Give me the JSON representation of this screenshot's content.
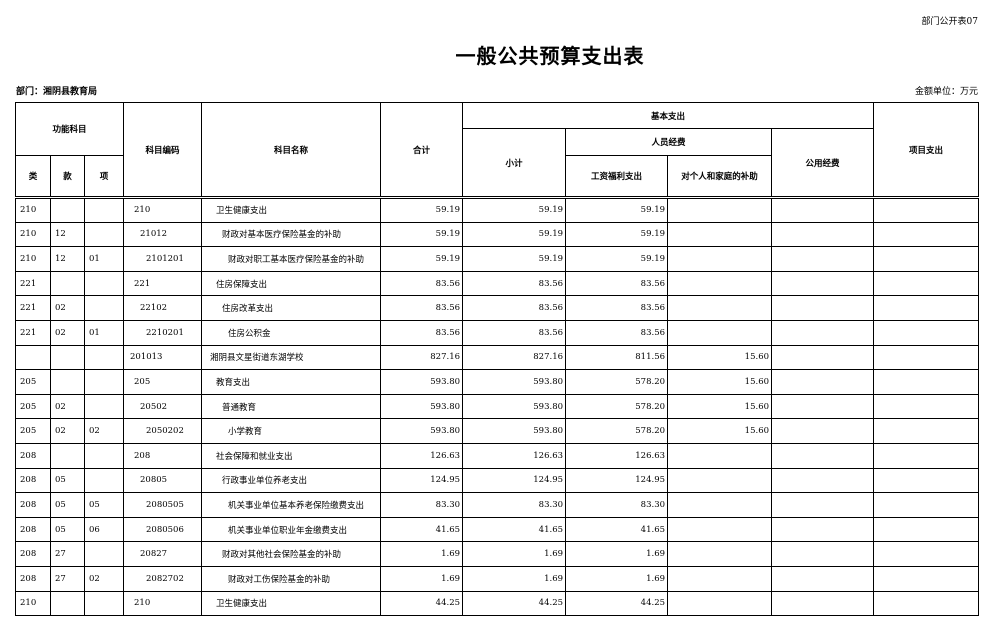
{
  "header": {
    "note": "部门公开表07",
    "title": "一般公共预算支出表",
    "department": "部门：湘阴县教育局",
    "unit": "金额单位：万元"
  },
  "table": {
    "columns": {
      "function": "功能科目",
      "lei": "类",
      "kuan": "款",
      "xiang": "项",
      "code": "科目编码",
      "name": "科目名称",
      "total": "合计",
      "basic": "基本支出",
      "subtotal": "小计",
      "personnel": "人员经费",
      "wages": "工资福利支出",
      "subsidies": "对个人和家庭的补助",
      "public": "公用经费",
      "project": "项目支出"
    },
    "rows": [
      [
        "210",
        null,
        null,
        "210",
        "卫生健康支出",
        "59.19",
        "59.19",
        "59.19",
        null,
        null,
        null
      ],
      [
        "210",
        "12",
        null,
        "21012",
        "财政对基本医疗保险基金的补助",
        "59.19",
        "59.19",
        "59.19",
        null,
        null,
        null
      ],
      [
        "210",
        "12",
        "01",
        "2101201",
        "财政对职工基本医疗保险基金的补助",
        "59.19",
        "59.19",
        "59.19",
        null,
        null,
        null
      ],
      [
        "221",
        null,
        null,
        "221",
        "住房保障支出",
        "83.56",
        "83.56",
        "83.56",
        null,
        null,
        null
      ],
      [
        "221",
        "02",
        null,
        "22102",
        "住房改革支出",
        "83.56",
        "83.56",
        "83.56",
        null,
        null,
        null
      ],
      [
        "221",
        "02",
        "01",
        "2210201",
        "住房公积金",
        "83.56",
        "83.56",
        "83.56",
        null,
        null,
        null
      ],
      [
        null,
        null,
        null,
        "201013",
        "湘阴县文星街道东湖学校",
        "827.16",
        "827.16",
        "811.56",
        "15.60",
        null,
        null
      ],
      [
        "205",
        null,
        null,
        "205",
        "教育支出",
        "593.80",
        "593.80",
        "578.20",
        "15.60",
        null,
        null
      ],
      [
        "205",
        "02",
        null,
        "20502",
        "普通教育",
        "593.80",
        "593.80",
        "578.20",
        "15.60",
        null,
        null
      ],
      [
        "205",
        "02",
        "02",
        "2050202",
        "小学教育",
        "593.80",
        "593.80",
        "578.20",
        "15.60",
        null,
        null
      ],
      [
        "208",
        null,
        null,
        "208",
        "社会保障和就业支出",
        "126.63",
        "126.63",
        "126.63",
        null,
        null,
        null
      ],
      [
        "208",
        "05",
        null,
        "20805",
        "行政事业单位养老支出",
        "124.95",
        "124.95",
        "124.95",
        null,
        null,
        null
      ],
      [
        "208",
        "05",
        "05",
        "2080505",
        "机关事业单位基本养老保险缴费支出",
        "83.30",
        "83.30",
        "83.30",
        null,
        null,
        null
      ],
      [
        "208",
        "05",
        "06",
        "2080506",
        "机关事业单位职业年金缴费支出",
        "41.65",
        "41.65",
        "41.65",
        null,
        null,
        null
      ],
      [
        "208",
        "27",
        null,
        "20827",
        "财政对其他社会保险基金的补助",
        "1.69",
        "1.69",
        "1.69",
        null,
        null,
        null
      ],
      [
        "208",
        "27",
        "02",
        "2082702",
        "财政对工伤保险基金的补助",
        "1.69",
        "1.69",
        "1.69",
        null,
        null,
        null
      ],
      [
        "210",
        null,
        null,
        "210",
        "卫生健康支出",
        "44.25",
        "44.25",
        "44.25",
        null,
        null,
        null
      ]
    ]
  }
}
